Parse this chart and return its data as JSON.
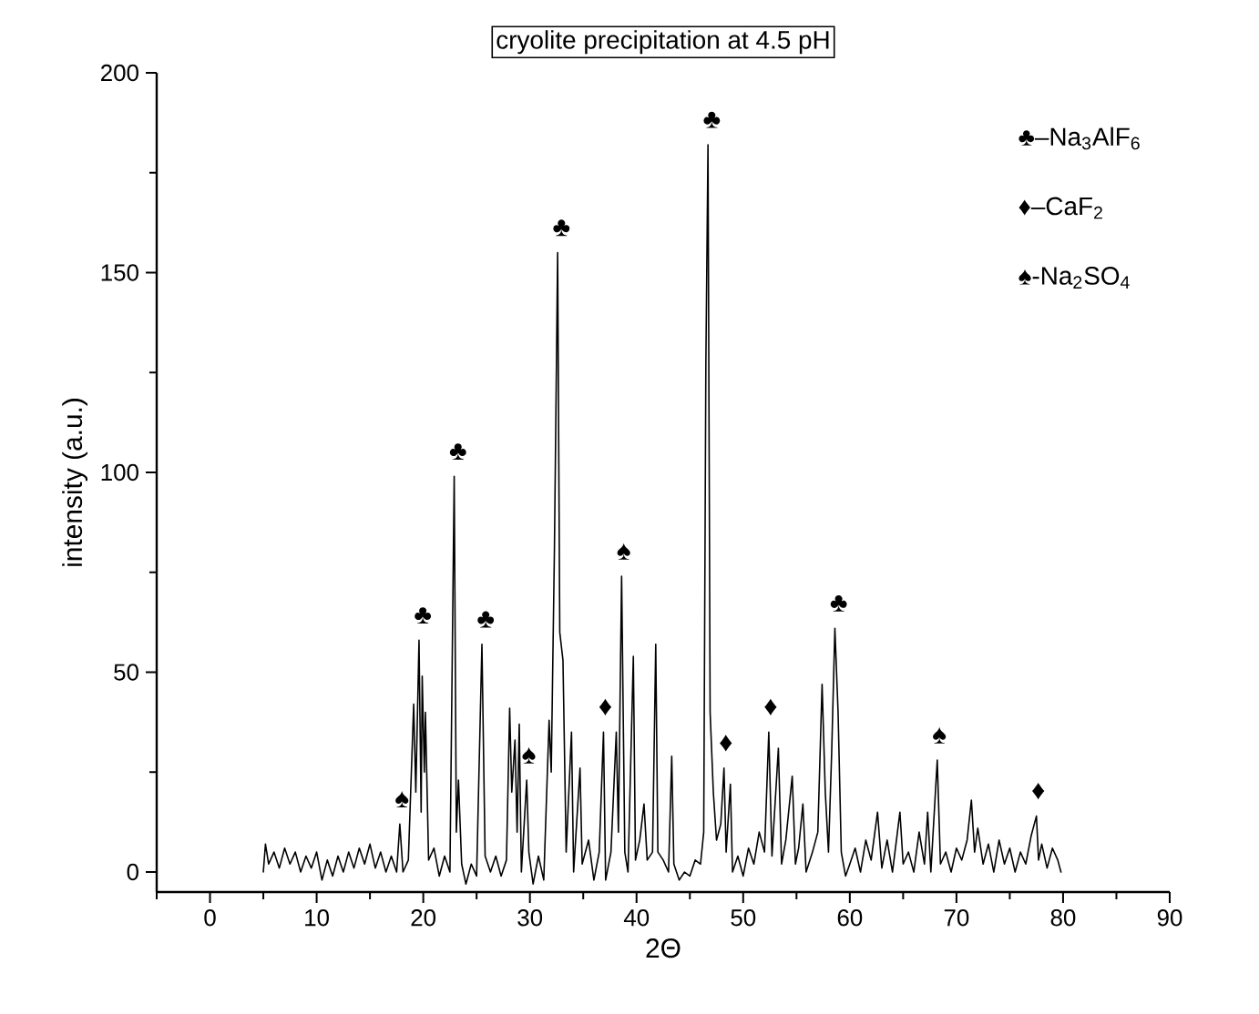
{
  "chart_data": {
    "type": "line",
    "title": "cryolite precipitation at 4.5 pH",
    "xlabel": "2Θ",
    "ylabel": "intensity (a.u.)",
    "xlim": [
      -5,
      90
    ],
    "ylim": [
      -5,
      200
    ],
    "xticks": [
      {
        "value": -5,
        "label": null
      },
      0,
      {
        "value": 5,
        "label": null
      },
      10,
      {
        "value": 15,
        "label": null
      },
      20,
      {
        "value": 25,
        "label": null
      },
      30,
      {
        "value": 35,
        "label": null
      },
      40,
      {
        "value": 45,
        "label": null
      },
      50,
      {
        "value": 55,
        "label": null
      },
      60,
      {
        "value": 65,
        "label": null
      },
      70,
      {
        "value": 75,
        "label": null
      },
      80,
      {
        "value": 85,
        "label": null
      },
      90
    ],
    "yticks": [
      0,
      {
        "value": 25,
        "label": null
      },
      50,
      {
        "value": 75,
        "label": null
      },
      100,
      {
        "value": 125,
        "label": null
      },
      150,
      {
        "value": 175,
        "label": null
      },
      200
    ],
    "x": [
      5.0,
      5.2,
      5.5,
      6.0,
      6.5,
      7.0,
      7.5,
      8.0,
      8.5,
      9.0,
      9.5,
      10.0,
      10.5,
      11.0,
      11.5,
      12.0,
      12.5,
      13.0,
      13.5,
      14.0,
      14.5,
      15.0,
      15.5,
      16.0,
      16.5,
      17.0,
      17.5,
      17.8,
      18.1,
      18.6,
      19.1,
      19.3,
      19.6,
      19.8,
      19.9,
      20.1,
      20.2,
      20.5,
      21.0,
      21.5,
      22.0,
      22.5,
      22.9,
      23.1,
      23.3,
      23.6,
      24.0,
      24.5,
      25.0,
      25.5,
      25.8,
      26.3,
      26.8,
      27.3,
      27.8,
      28.1,
      28.3,
      28.6,
      28.8,
      29.0,
      29.2,
      29.7,
      29.9,
      30.3,
      30.8,
      31.3,
      31.8,
      32.0,
      32.3,
      32.6,
      32.8,
      33.1,
      33.4,
      33.9,
      34.1,
      34.7,
      34.9,
      35.5,
      36.0,
      36.5,
      36.9,
      37.1,
      37.6,
      38.1,
      38.3,
      38.6,
      38.9,
      39.2,
      39.7,
      39.9,
      40.3,
      40.7,
      41.0,
      41.5,
      41.8,
      42.0,
      42.5,
      43.0,
      43.3,
      43.5,
      44.0,
      44.5,
      45.0,
      45.5,
      46.0,
      46.3,
      46.5,
      46.7,
      46.9,
      47.2,
      47.5,
      47.9,
      48.2,
      48.4,
      48.8,
      49.0,
      49.5,
      50.0,
      50.5,
      51.0,
      51.5,
      52.0,
      52.4,
      52.7,
      53.3,
      53.6,
      54.0,
      54.6,
      54.9,
      55.2,
      55.6,
      55.9,
      56.5,
      57.0,
      57.4,
      57.7,
      58.0,
      58.3,
      58.6,
      58.9,
      59.2,
      59.6,
      60.0,
      60.5,
      61.0,
      61.5,
      62.0,
      62.6,
      63.0,
      63.5,
      64.0,
      64.7,
      65.0,
      65.5,
      66.0,
      66.5,
      67.0,
      67.3,
      67.6,
      68.2,
      68.5,
      69.0,
      69.5,
      70.0,
      70.5,
      71.0,
      71.4,
      71.7,
      72.0,
      72.5,
      73.0,
      73.5,
      74.0,
      74.5,
      75.0,
      75.5,
      76.0,
      76.5,
      77.0,
      77.5,
      77.7,
      78.0,
      78.5,
      79.0,
      79.5,
      79.8
    ],
    "series": [
      {
        "color": "#000000",
        "values": [
          0,
          7,
          2,
          5,
          1,
          6,
          2,
          5,
          0,
          4,
          1,
          5,
          -2,
          3,
          -1,
          4,
          0,
          5,
          1,
          6,
          2,
          7,
          1,
          5,
          0,
          4,
          0,
          12,
          0,
          3,
          42,
          20,
          58,
          15,
          49,
          25,
          40,
          3,
          6,
          -1,
          4,
          0,
          99,
          10,
          23,
          2,
          -3,
          2,
          -1,
          57,
          4,
          0,
          4,
          -1,
          3,
          41,
          20,
          33,
          10,
          37,
          0,
          23,
          5,
          -3,
          4,
          -2,
          38,
          25,
          81,
          155,
          60,
          53,
          5,
          35,
          0,
          26,
          2,
          8,
          -2,
          5,
          35,
          -2,
          5,
          35,
          10,
          74,
          5,
          0,
          54,
          3,
          8,
          17,
          3,
          5,
          57,
          5,
          3,
          0,
          29,
          2,
          -2,
          0,
          -1,
          3,
          2,
          10,
          127,
          182,
          40,
          20,
          8,
          12,
          26,
          5,
          22,
          0,
          4,
          -1,
          6,
          2,
          10,
          5,
          35,
          4,
          31,
          2,
          8,
          24,
          2,
          6,
          17,
          0,
          5,
          10,
          47,
          20,
          5,
          30,
          61,
          40,
          5,
          -1,
          2,
          6,
          0,
          8,
          3,
          15,
          1,
          8,
          0,
          15,
          2,
          5,
          0,
          10,
          2,
          15,
          0,
          28,
          2,
          5,
          0,
          6,
          3,
          8,
          18,
          5,
          11,
          2,
          7,
          0,
          8,
          2,
          6,
          0,
          5,
          2,
          9,
          14,
          3,
          7,
          1,
          6,
          3,
          0
        ]
      }
    ],
    "annotations": [
      {
        "text": "♣",
        "x": 19.6,
        "y": 58
      },
      {
        "text": "♣",
        "x": 22.9,
        "y": 99
      },
      {
        "text": "♣",
        "x": 25.5,
        "y": 57
      },
      {
        "text": "♣",
        "x": 32.6,
        "y": 155
      },
      {
        "text": "♣",
        "x": 46.7,
        "y": 182
      },
      {
        "text": "♣",
        "x": 58.6,
        "y": 61
      },
      {
        "text": "♦",
        "x": 36.9,
        "y": 35
      },
      {
        "text": "♦",
        "x": 48.2,
        "y": 26
      },
      {
        "text": "♦",
        "x": 52.4,
        "y": 35
      },
      {
        "text": "♦",
        "x": 77.5,
        "y": 14
      },
      {
        "text": "♠",
        "x": 17.8,
        "y": 12
      },
      {
        "text": "♠",
        "x": 29.7,
        "y": 23
      },
      {
        "text": "♠",
        "x": 38.6,
        "y": 74
      },
      {
        "text": "♠",
        "x": 68.2,
        "y": 28
      },
      "♣–Na$_{3}$AlF$_{6}$",
      "♦–CaF$_{2}$",
      "♠-Na$_{2}$SO$_{4}$"
    ]
  }
}
